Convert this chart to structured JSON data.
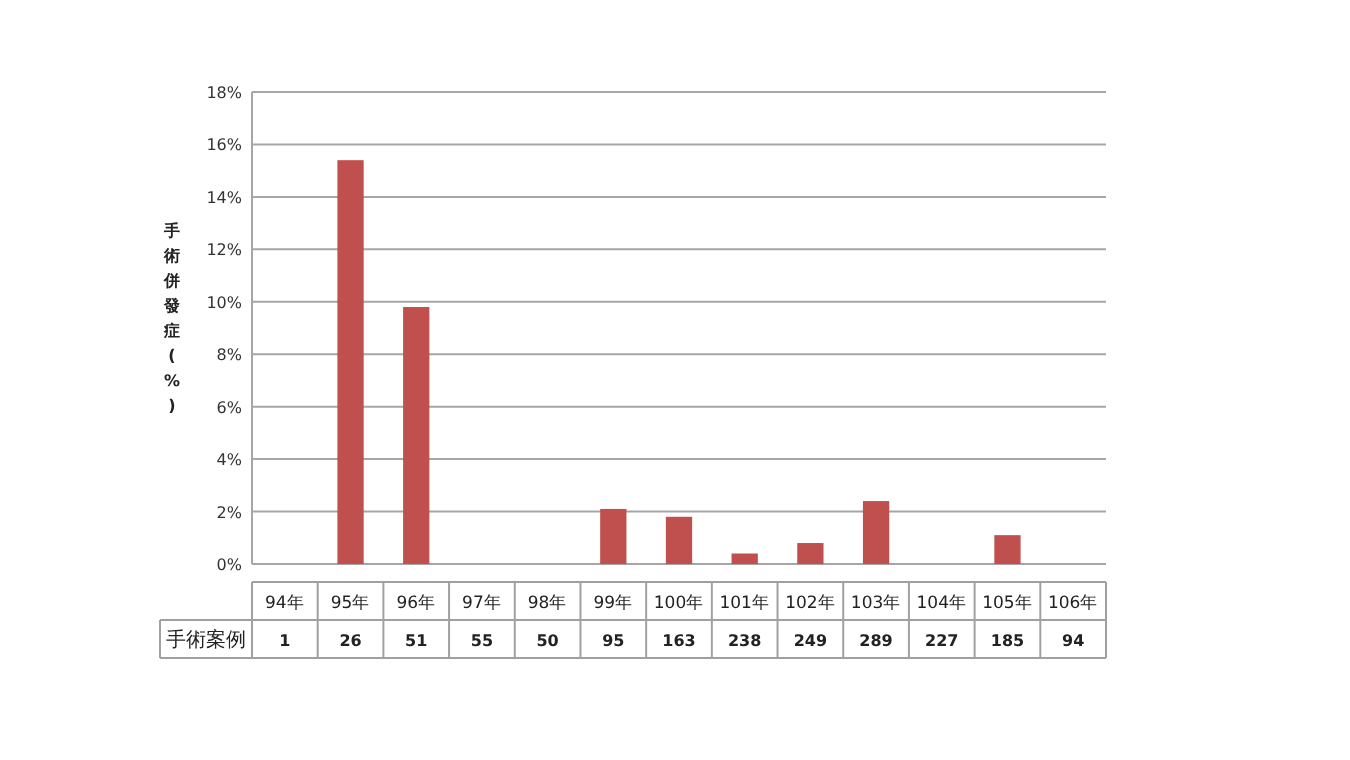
{
  "chart_data": {
    "type": "bar",
    "ylabel": "手術併發症(%)",
    "categories": [
      "94年",
      "95年",
      "96年",
      "97年",
      "98年",
      "99年",
      "100年",
      "101年",
      "102年",
      "103年",
      "104年",
      "105年",
      "106年"
    ],
    "values": [
      0,
      15.4,
      9.8,
      0,
      0,
      2.1,
      1.8,
      0.4,
      0.8,
      2.4,
      0,
      1.1,
      0
    ],
    "color": "#c0504d",
    "ylim": [
      0,
      18
    ],
    "yticks": [
      {
        "value": 0,
        "label": "0%"
      },
      {
        "value": 2,
        "label": "2%"
      },
      {
        "value": 4,
        "label": "4%"
      },
      {
        "value": 6,
        "label": "6%"
      },
      {
        "value": 8,
        "label": "8%"
      },
      {
        "value": 10,
        "label": "10%"
      },
      {
        "value": 12,
        "label": "12%"
      },
      {
        "value": 14,
        "label": "14%"
      },
      {
        "value": 16,
        "label": "16%"
      },
      {
        "value": 18,
        "label": "18%"
      }
    ],
    "grid": "y",
    "annotations": [
      "手術案例",
      "1",
      "26",
      "51",
      "55",
      "50",
      "95",
      "163",
      "238",
      "249",
      "289",
      "227",
      "185",
      "94"
    ]
  }
}
